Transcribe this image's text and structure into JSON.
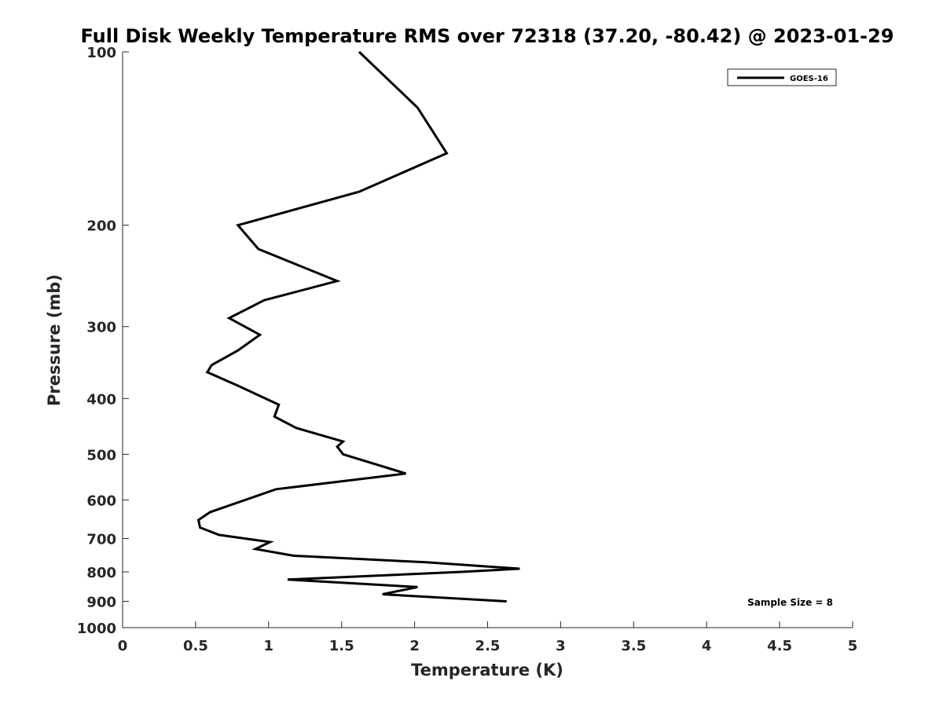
{
  "chart_data": {
    "type": "line",
    "title": "Full Disk Weekly Temperature RMS over 72318 (37.20, -80.42) @ 2023-01-29",
    "xlabel": "Temperature (K)",
    "ylabel": "Pressure (mb)",
    "xlim": [
      0,
      5
    ],
    "ylim": [
      100,
      1000
    ],
    "y_scale": "log",
    "y_reversed": true,
    "x_ticks": [
      0,
      0.5,
      1,
      1.5,
      2,
      2.5,
      3,
      3.5,
      4,
      4.5,
      5
    ],
    "y_ticks": [
      100,
      200,
      300,
      400,
      500,
      600,
      700,
      800,
      900,
      1000
    ],
    "grid": false,
    "legend_position": "top-right",
    "series": [
      {
        "name": "GOES-16",
        "color": "#000000",
        "x": [
          1.62,
          2.02,
          2.22,
          1.62,
          0.79,
          0.93,
          1.47,
          0.97,
          0.73,
          0.94,
          0.79,
          0.61,
          0.58,
          0.79,
          1.07,
          1.04,
          1.19,
          1.51,
          1.47,
          1.51,
          1.94,
          1.05,
          0.76,
          0.6,
          0.52,
          0.53,
          0.66,
          1.01,
          0.91,
          1.17,
          2.08,
          2.72,
          2.32,
          1.13,
          2.02,
          1.78,
          2.63
        ],
        "y": [
          100,
          125,
          150,
          175,
          200,
          220,
          250,
          270,
          290,
          310,
          330,
          350,
          360,
          380,
          410,
          430,
          450,
          475,
          485,
          500,
          540,
          575,
          610,
          630,
          650,
          670,
          690,
          710,
          730,
          750,
          770,
          790,
          800,
          825,
          850,
          875,
          900
        ]
      }
    ],
    "annotations": [
      "Sample Size = 8"
    ]
  }
}
